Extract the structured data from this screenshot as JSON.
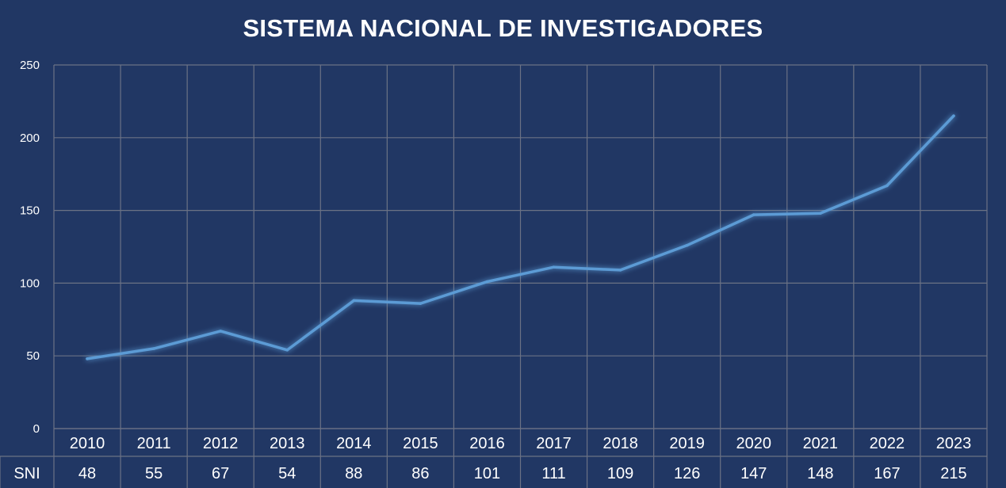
{
  "chart_data": {
    "type": "line",
    "title": "SISTEMA NACIONAL DE INVESTIGADORES",
    "categories": [
      "2010",
      "2011",
      "2012",
      "2013",
      "2014",
      "2015",
      "2016",
      "2017",
      "2018",
      "2019",
      "2020",
      "2021",
      "2022",
      "2023"
    ],
    "series": [
      {
        "name": "SNI",
        "values": [
          48,
          55,
          67,
          54,
          88,
          86,
          101,
          111,
          109,
          126,
          147,
          148,
          167,
          215
        ]
      }
    ],
    "yticks": [
      "0",
      "50",
      "100",
      "150",
      "200",
      "250"
    ],
    "ylim": [
      0,
      250
    ],
    "grid": true,
    "data_table": true,
    "colors": {
      "background": "#213764",
      "line": "#5b9bd5",
      "grid": "#6b7285"
    }
  }
}
